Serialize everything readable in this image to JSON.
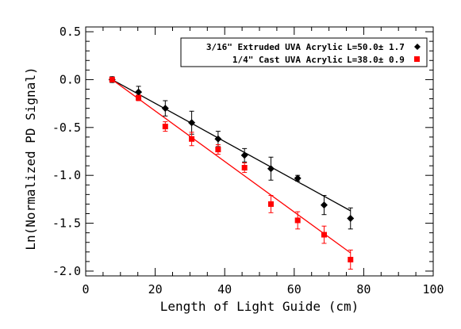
{
  "chart_data": {
    "type": "scatter",
    "xlabel": "Length of Light Guide (cm)",
    "ylabel": "Ln(Normalized PD Signal)",
    "xlim": [
      0,
      100
    ],
    "ylim": [
      -2.05,
      0.55
    ],
    "xticks": [
      0,
      20,
      40,
      60,
      80,
      100
    ],
    "xtick_labels": [
      "0",
      "20",
      "40",
      "60",
      "80",
      "100"
    ],
    "yticks": [
      0.5,
      0.0,
      -0.5,
      -1.0,
      -1.5,
      -2.0
    ],
    "ytick_labels": [
      "0.5",
      "0.0",
      "-0.5",
      "-1.0",
      "-1.5",
      "-2.0"
    ],
    "legend_position": "top-right",
    "grid": false,
    "series": [
      {
        "name": "3/16\" Extruded UVA Acrylic",
        "fit_label": "L=50.0± 1.7",
        "color": "#000000",
        "marker": "diamond",
        "x": [
          7.6,
          15.2,
          22.9,
          30.5,
          38.1,
          45.7,
          53.3,
          61.0,
          68.6,
          76.2
        ],
        "y": [
          0.0,
          -0.13,
          -0.3,
          -0.45,
          -0.62,
          -0.79,
          -0.93,
          -1.03,
          -1.31,
          -1.45
        ],
        "err": [
          0.03,
          0.06,
          0.08,
          0.12,
          0.08,
          0.07,
          0.12,
          0.03,
          0.1,
          0.11
        ],
        "fit": {
          "x": [
            7.6,
            76.2
          ],
          "y": [
            0.0,
            -1.37
          ]
        }
      },
      {
        "name": "1/4\" Cast UVA Acrylic",
        "fit_label": "L=38.0± 0.9",
        "color": "#ff0000",
        "marker": "square",
        "x": [
          7.6,
          15.2,
          22.9,
          30.5,
          38.1,
          45.7,
          53.3,
          61.0,
          68.6,
          76.2
        ],
        "y": [
          0.0,
          -0.19,
          -0.49,
          -0.62,
          -0.73,
          -0.92,
          -1.3,
          -1.47,
          -1.62,
          -1.88
        ],
        "err": [
          0.02,
          0.03,
          0.05,
          0.07,
          0.05,
          0.05,
          0.09,
          0.09,
          0.09,
          0.1
        ],
        "fit": {
          "x": [
            7.6,
            76.2
          ],
          "y": [
            0.0,
            -1.81
          ]
        }
      }
    ]
  }
}
